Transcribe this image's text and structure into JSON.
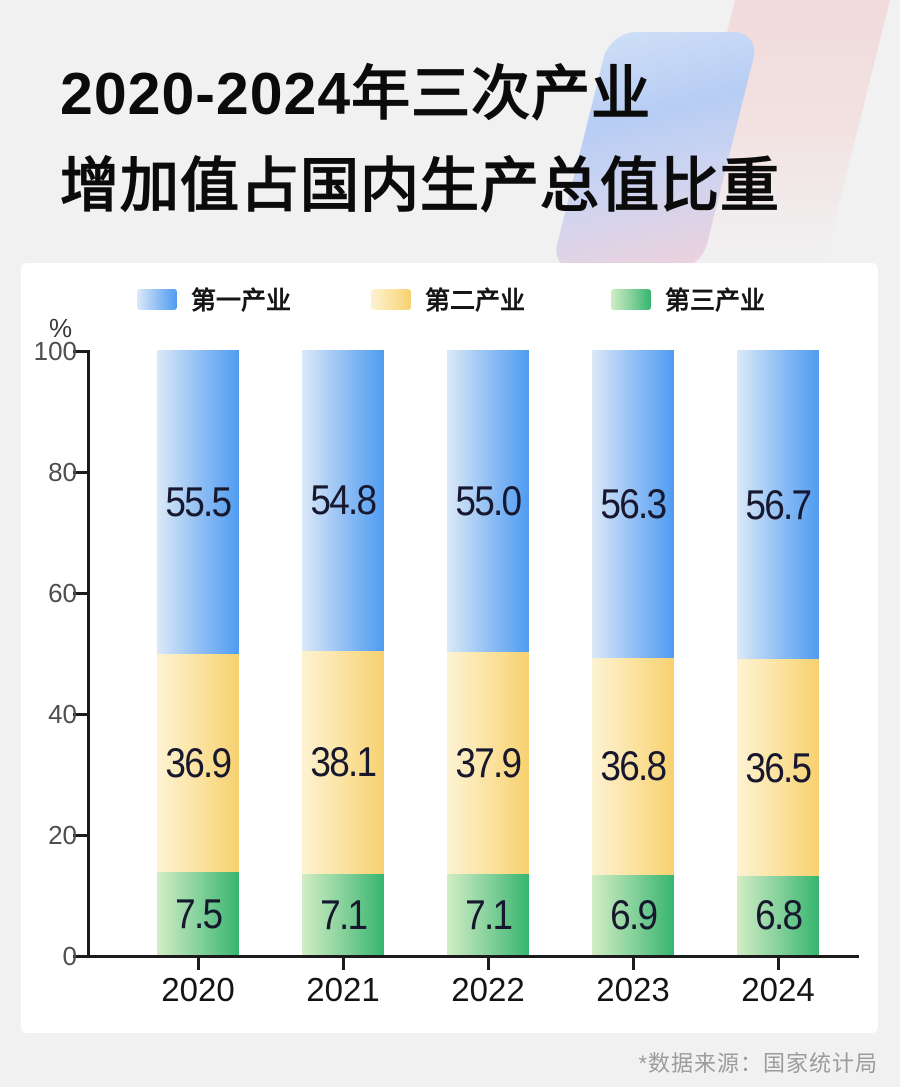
{
  "title": {
    "line1": "2020-2024年三次产业",
    "line2": "增加值占国内生产总值比重"
  },
  "footer": {
    "source_note": "*数据来源：国家统计局"
  },
  "chart_data": {
    "type": "bar",
    "stacked": true,
    "title": "2020-2024年三次产业增加值占国内生产总值比重",
    "unit": "%",
    "ylabel": "%",
    "ylim": [
      0,
      100
    ],
    "yticks": [
      "100",
      "80",
      "60",
      "40",
      "20",
      "0"
    ],
    "grid": false,
    "legend_position": "top",
    "categories": [
      "2020",
      "2021",
      "2022",
      "2023",
      "2024"
    ],
    "series": [
      {
        "key": "primary",
        "name": "第一产业",
        "values": [
          55.5,
          54.8,
          55.0,
          56.3,
          56.7
        ],
        "value_labels": [
          "55.5",
          "54.8",
          "55.0",
          "56.3",
          "56.7"
        ],
        "color_light": "#dce9f8",
        "color_mid": "#8cbcf4",
        "color": "#4f9cf1"
      },
      {
        "key": "secondary",
        "name": "第二产业",
        "values": [
          36.9,
          38.1,
          37.9,
          36.8,
          36.5
        ],
        "value_labels": [
          "36.9",
          "38.1",
          "37.9",
          "36.8",
          "36.5"
        ],
        "color_light": "#fdf3d3",
        "color_mid": "#fbe19c",
        "color": "#f7d170"
      },
      {
        "key": "tertiary",
        "name": "第三产业",
        "values": [
          7.5,
          7.1,
          7.1,
          6.9,
          6.8
        ],
        "value_labels": [
          "7.5",
          "7.1",
          "7.1",
          "6.9",
          "6.8"
        ],
        "color_light": "#d2edc5",
        "color_mid": "#7fcf98",
        "color": "#36b56f"
      }
    ]
  }
}
